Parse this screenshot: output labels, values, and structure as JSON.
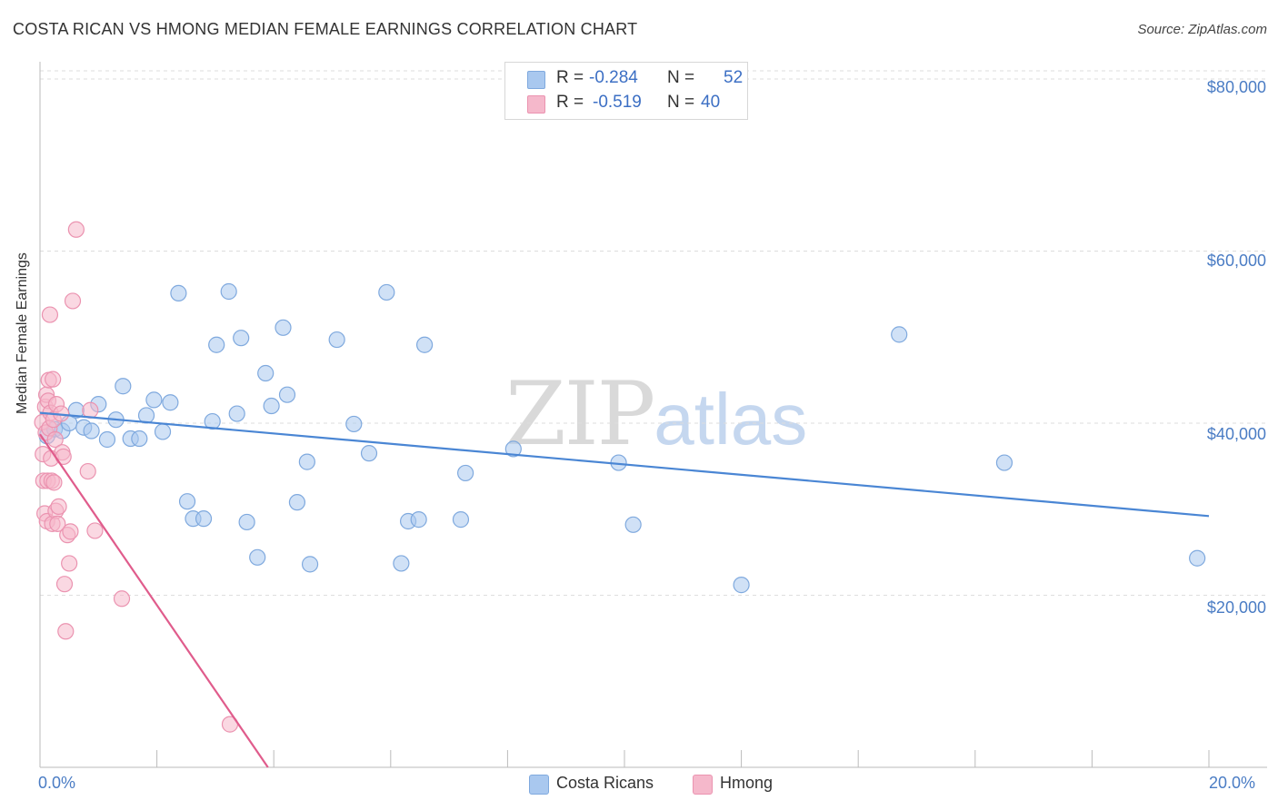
{
  "header": {
    "title": "COSTA RICAN VS HMONG MEDIAN FEMALE EARNINGS CORRELATION CHART",
    "source": "Source: ZipAtlas.com"
  },
  "watermark": {
    "zip": "ZIP",
    "atlas": "atlas"
  },
  "legend": {
    "rows": [
      {
        "r_label": "R =",
        "r_value": "-0.284",
        "n_label": "N =",
        "n_value": "52",
        "color": "#a9c8ef"
      },
      {
        "r_label": "R =",
        "r_value": "-0.519",
        "n_label": "N =",
        "n_value": "40",
        "color": "#f5b8cb"
      }
    ]
  },
  "bottom_legend": [
    {
      "label": "Costa Ricans",
      "color": "#a9c8ef"
    },
    {
      "label": "Hmong",
      "color": "#f5b8cb"
    }
  ],
  "axes": {
    "ylabel": "Median Female Earnings",
    "y_ticks": [
      "$80,000",
      "$60,000",
      "$40,000",
      "$20,000"
    ],
    "x_left": "0.0%",
    "x_right": "20.0%"
  },
  "chart_data": {
    "type": "scatter",
    "title": "COSTA RICAN VS HMONG MEDIAN FEMALE EARNINGS CORRELATION CHART",
    "xlabel": "",
    "ylabel": "Median Female Earnings",
    "xlim": [
      0,
      20
    ],
    "ylim": [
      0,
      82000
    ],
    "y_tick_values": [
      80000,
      60000,
      40000,
      20000
    ],
    "grid": true,
    "legend_position": "top-center",
    "series": [
      {
        "name": "Costa Ricans",
        "color": "#4a86d4",
        "fill": "#a9c8ef",
        "r": -0.284,
        "n": 52,
        "trend": {
          "x": [
            0,
            20
          ],
          "y": [
            41200,
            29200
          ]
        },
        "points": [
          [
            0.12,
            38500
          ],
          [
            0.25,
            39300
          ],
          [
            0.38,
            39100
          ],
          [
            0.5,
            40000
          ],
          [
            0.62,
            41500
          ],
          [
            0.75,
            39500
          ],
          [
            0.88,
            39100
          ],
          [
            1.0,
            42200
          ],
          [
            1.15,
            38100
          ],
          [
            1.3,
            40400
          ],
          [
            1.42,
            44300
          ],
          [
            1.55,
            38200
          ],
          [
            1.7,
            38200
          ],
          [
            1.82,
            40900
          ],
          [
            1.95,
            42700
          ],
          [
            2.1,
            39000
          ],
          [
            2.23,
            42400
          ],
          [
            2.37,
            55100
          ],
          [
            2.52,
            30900
          ],
          [
            2.62,
            28900
          ],
          [
            2.8,
            28900
          ],
          [
            2.95,
            40200
          ],
          [
            3.02,
            49100
          ],
          [
            3.23,
            55300
          ],
          [
            3.37,
            41100
          ],
          [
            3.44,
            49900
          ],
          [
            3.54,
            28500
          ],
          [
            3.72,
            24400
          ],
          [
            3.86,
            45800
          ],
          [
            3.96,
            42000
          ],
          [
            4.16,
            51100
          ],
          [
            4.23,
            43300
          ],
          [
            4.4,
            30800
          ],
          [
            4.57,
            35500
          ],
          [
            4.62,
            23600
          ],
          [
            5.08,
            49700
          ],
          [
            5.37,
            39900
          ],
          [
            5.63,
            36500
          ],
          [
            5.93,
            55200
          ],
          [
            6.18,
            23700
          ],
          [
            6.3,
            28600
          ],
          [
            6.48,
            28800
          ],
          [
            6.58,
            49100
          ],
          [
            7.2,
            28800
          ],
          [
            7.28,
            34200
          ],
          [
            8.1,
            37000
          ],
          [
            9.9,
            35400
          ],
          [
            10.15,
            28200
          ],
          [
            12.0,
            21200
          ],
          [
            14.7,
            50300
          ],
          [
            16.5,
            35400
          ],
          [
            19.8,
            24300
          ]
        ]
      },
      {
        "name": "Hmong",
        "color": "#e05c8c",
        "fill": "#f5b8cb",
        "r": -0.519,
        "n": 40,
        "trend": {
          "x": [
            0,
            3.9
          ],
          "y": [
            38700,
            0
          ]
        },
        "points": [
          [
            0.04,
            40100
          ],
          [
            0.05,
            36400
          ],
          [
            0.06,
            33300
          ],
          [
            0.08,
            29500
          ],
          [
            0.09,
            41900
          ],
          [
            0.1,
            38900
          ],
          [
            0.11,
            43300
          ],
          [
            0.12,
            28600
          ],
          [
            0.13,
            33300
          ],
          [
            0.14,
            42600
          ],
          [
            0.15,
            45000
          ],
          [
            0.16,
            39400
          ],
          [
            0.17,
            52600
          ],
          [
            0.18,
            41200
          ],
          [
            0.19,
            35900
          ],
          [
            0.2,
            33300
          ],
          [
            0.21,
            28300
          ],
          [
            0.22,
            45100
          ],
          [
            0.23,
            40400
          ],
          [
            0.24,
            33100
          ],
          [
            0.26,
            38100
          ],
          [
            0.27,
            29800
          ],
          [
            0.28,
            42200
          ],
          [
            0.3,
            28300
          ],
          [
            0.32,
            30300
          ],
          [
            0.36,
            41100
          ],
          [
            0.38,
            36600
          ],
          [
            0.4,
            36100
          ],
          [
            0.42,
            21300
          ],
          [
            0.44,
            15800
          ],
          [
            0.47,
            27000
          ],
          [
            0.5,
            23700
          ],
          [
            0.52,
            27400
          ],
          [
            0.56,
            54200
          ],
          [
            0.62,
            62500
          ],
          [
            0.82,
            34400
          ],
          [
            0.86,
            41500
          ],
          [
            0.94,
            27500
          ],
          [
            1.4,
            19600
          ],
          [
            3.25,
            5000
          ]
        ]
      }
    ]
  }
}
